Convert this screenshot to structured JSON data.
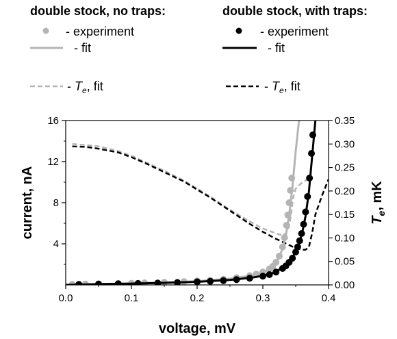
{
  "legend": {
    "left_header": "double stock, no traps:",
    "right_header": "double stock, with traps:",
    "experiment_label": "- experiment",
    "fit_label": "- fit",
    "te_prefix": "- ",
    "te_symbol": "T",
    "te_sub": "e",
    "te_suffix": ", fit"
  },
  "chart_data": {
    "type": "line",
    "xlabel": "voltage, mV",
    "ylabel": "current, nA",
    "y2label_symbol": "T",
    "y2label_sub": "e",
    "y2label_suffix": ", mK",
    "xlim": [
      0.0,
      0.4
    ],
    "ylim": [
      0,
      16
    ],
    "y2lim": [
      0.0,
      0.35
    ],
    "x_ticks": [
      "0.0",
      "0.1",
      "0.2",
      "0.3",
      "0.4"
    ],
    "y_ticks": [
      "4",
      "8",
      "12",
      "16"
    ],
    "y2_ticks": [
      "0.00",
      "0.05",
      "0.10",
      "0.15",
      "0.20",
      "0.25",
      "0.30",
      "0.35"
    ],
    "colors": {
      "no_traps": "#b4b4b4",
      "with_traps": "#000000"
    },
    "series": [
      {
        "name": "double stock, no traps: experiment",
        "kind": "points",
        "axis": "left",
        "group": "no_traps",
        "x": [
          0.01,
          0.03,
          0.05,
          0.08,
          0.1,
          0.12,
          0.15,
          0.18,
          0.2,
          0.22,
          0.24,
          0.26,
          0.28,
          0.29,
          0.3,
          0.31,
          0.315,
          0.32,
          0.325,
          0.33,
          0.333,
          0.336,
          0.338,
          0.34,
          0.342,
          0.344
        ],
        "y": [
          0.05,
          0.08,
          0.1,
          0.13,
          0.16,
          0.2,
          0.25,
          0.32,
          0.38,
          0.45,
          0.55,
          0.7,
          0.9,
          1.05,
          1.25,
          1.55,
          1.8,
          2.2,
          2.8,
          3.7,
          4.6,
          5.8,
          6.8,
          8.0,
          9.2,
          10.4
        ]
      },
      {
        "name": "double stock, no traps: fit",
        "kind": "solid",
        "axis": "left",
        "group": "no_traps",
        "x": [
          0.0,
          0.05,
          0.1,
          0.15,
          0.2,
          0.25,
          0.28,
          0.3,
          0.31,
          0.32,
          0.33,
          0.335,
          0.34,
          0.345,
          0.35,
          0.355
        ],
        "y": [
          0.0,
          0.08,
          0.15,
          0.24,
          0.36,
          0.6,
          0.88,
          1.2,
          1.5,
          2.1,
          3.5,
          4.8,
          6.8,
          9.5,
          13.0,
          16.0
        ]
      },
      {
        "name": "double stock, no traps: Te fit",
        "kind": "dashed",
        "axis": "right",
        "group": "no_traps",
        "x": [
          0.01,
          0.03,
          0.05,
          0.08,
          0.1,
          0.12,
          0.15,
          0.18,
          0.2,
          0.22,
          0.25,
          0.28,
          0.3,
          0.32,
          0.33,
          0.335,
          0.34,
          0.343,
          0.346,
          0.35,
          0.355,
          0.36,
          0.365,
          0.37,
          0.375
        ],
        "y": [
          0.3,
          0.298,
          0.295,
          0.285,
          0.275,
          0.262,
          0.243,
          0.222,
          0.205,
          0.188,
          0.16,
          0.135,
          0.12,
          0.11,
          0.105,
          0.11,
          0.125,
          0.15,
          0.185,
          0.205,
          0.212,
          0.218,
          0.222,
          0.226,
          0.23
        ]
      },
      {
        "name": "double stock, with traps: experiment",
        "kind": "points",
        "axis": "left",
        "group": "with_traps",
        "x": [
          0.02,
          0.05,
          0.08,
          0.11,
          0.14,
          0.17,
          0.2,
          0.22,
          0.24,
          0.26,
          0.28,
          0.3,
          0.31,
          0.32,
          0.33,
          0.335,
          0.34,
          0.345,
          0.35,
          0.353,
          0.356,
          0.359,
          0.362,
          0.365,
          0.368,
          0.371,
          0.374,
          0.376
        ],
        "y": [
          0.05,
          0.08,
          0.11,
          0.14,
          0.18,
          0.23,
          0.3,
          0.35,
          0.42,
          0.52,
          0.65,
          0.85,
          1.0,
          1.25,
          1.6,
          1.85,
          2.2,
          2.6,
          3.2,
          3.7,
          4.3,
          5.0,
          5.9,
          7.1,
          8.6,
          10.4,
          12.8,
          14.6
        ]
      },
      {
        "name": "double stock, with traps: fit",
        "kind": "solid",
        "axis": "left",
        "group": "with_traps",
        "x": [
          0.0,
          0.05,
          0.1,
          0.15,
          0.2,
          0.25,
          0.28,
          0.3,
          0.32,
          0.34,
          0.35,
          0.355,
          0.36,
          0.365,
          0.37,
          0.375,
          0.38
        ],
        "y": [
          0.0,
          0.07,
          0.13,
          0.2,
          0.3,
          0.48,
          0.68,
          0.88,
          1.25,
          2.2,
          3.2,
          4.0,
          5.1,
          6.7,
          9.0,
          12.5,
          16.0
        ]
      },
      {
        "name": "double stock, with traps: Te fit",
        "kind": "dashed",
        "axis": "right",
        "group": "with_traps",
        "x": [
          0.01,
          0.03,
          0.05,
          0.08,
          0.1,
          0.12,
          0.15,
          0.18,
          0.2,
          0.22,
          0.25,
          0.28,
          0.3,
          0.32,
          0.34,
          0.35,
          0.36,
          0.365,
          0.37,
          0.375,
          0.38,
          0.39,
          0.4
        ],
        "y": [
          0.295,
          0.294,
          0.29,
          0.282,
          0.272,
          0.26,
          0.24,
          0.22,
          0.203,
          0.186,
          0.158,
          0.13,
          0.113,
          0.098,
          0.085,
          0.078,
          0.075,
          0.075,
          0.08,
          0.11,
          0.15,
          0.19,
          0.225
        ]
      }
    ]
  }
}
